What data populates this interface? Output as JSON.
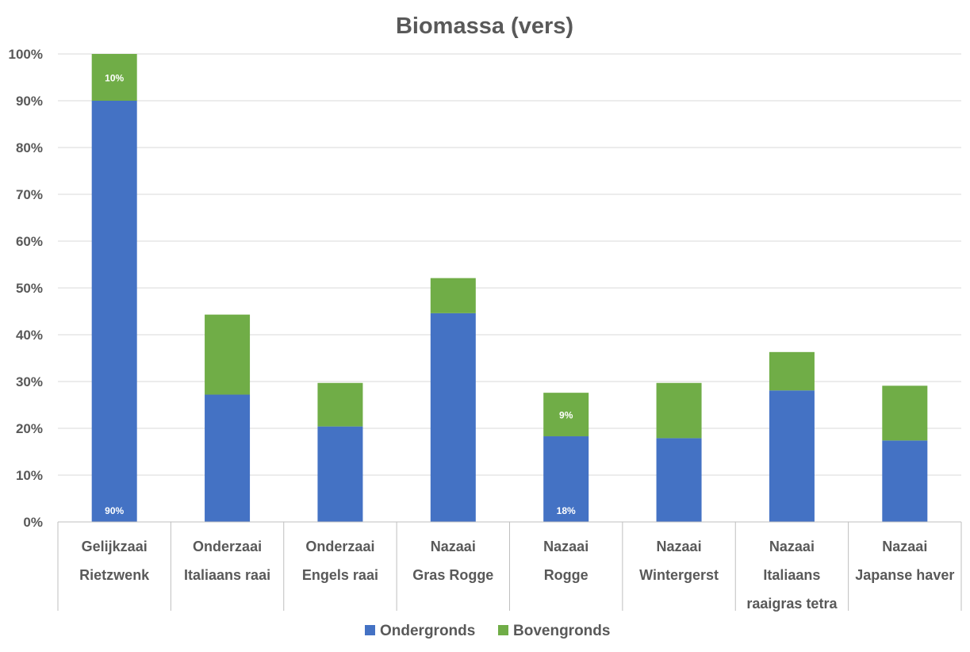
{
  "chart_data": {
    "type": "bar",
    "stacked": true,
    "title": "Biomassa (vers)",
    "xlabel": "",
    "ylabel": "",
    "ylim": [
      0,
      100
    ],
    "y_ticks": [
      "0%",
      "10%",
      "20%",
      "30%",
      "40%",
      "50%",
      "60%",
      "70%",
      "80%",
      "90%",
      "100%"
    ],
    "grid": true,
    "legend_position": "bottom",
    "categories": [
      [
        "Gelijkzaai",
        "Rietzwenk"
      ],
      [
        "Onderzaai",
        "Italiaans raai"
      ],
      [
        "Onderzaai",
        "Engels raai"
      ],
      [
        "Nazaai",
        "Gras Rogge"
      ],
      [
        "Nazaai",
        "Rogge"
      ],
      [
        "Nazaai",
        "Wintergerst"
      ],
      [
        "Nazaai",
        "Italiaans",
        "raaigras tetra"
      ],
      [
        "Nazaai",
        "Japanse haver"
      ]
    ],
    "series": [
      {
        "name": "Ondergronds",
        "color": "#4472c4",
        "values": [
          90,
          27.2,
          20.4,
          44.6,
          18.3,
          17.9,
          28.1,
          17.4
        ],
        "data_labels": [
          "90%",
          null,
          null,
          null,
          "18%",
          null,
          null,
          null
        ]
      },
      {
        "name": "Bovengronds",
        "color": "#70ad47",
        "values": [
          10,
          17.1,
          9.3,
          7.5,
          9.3,
          11.8,
          8.2,
          11.7
        ],
        "data_labels": [
          "10%",
          null,
          null,
          null,
          "9%",
          null,
          null,
          null
        ]
      }
    ]
  }
}
